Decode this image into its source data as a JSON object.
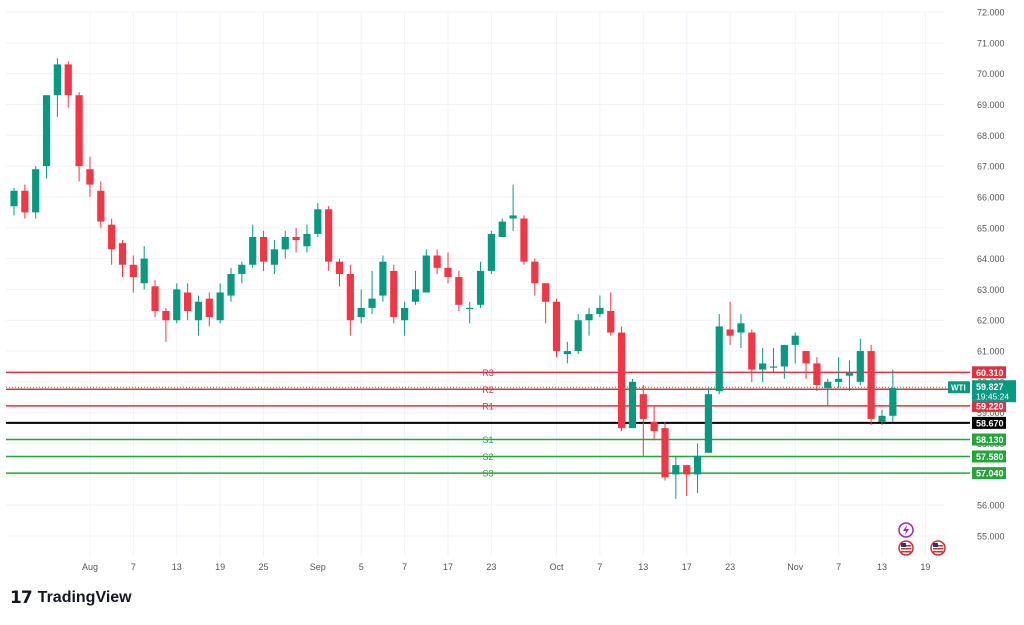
{
  "colors": {
    "up": "#089981",
    "down": "#f23645",
    "resist": "#e03040",
    "support": "#22a63a",
    "pivot": "#000000",
    "grid": "#f0f3fa",
    "axis_text": "#555555"
  },
  "chart_data": {
    "type": "candlestick",
    "symbol": "WTI",
    "last_price": "59.827",
    "countdown": "19:45:24",
    "ylim": [
      54.5,
      72.3
    ],
    "y_ticks": [
      "72.000",
      "71.000",
      "70.000",
      "69.000",
      "68.000",
      "67.000",
      "66.000",
      "65.000",
      "64.000",
      "63.000",
      "62.000",
      "61.000",
      "60.000",
      "59.000",
      "58.000",
      "57.000",
      "56.000",
      "55.000"
    ],
    "x_labels": [
      {
        "label": "Aug",
        "i": 7
      },
      {
        "label": "7",
        "i": 11
      },
      {
        "label": "13",
        "i": 15
      },
      {
        "label": "19",
        "i": 19
      },
      {
        "label": "25",
        "i": 23
      },
      {
        "label": "Sep",
        "i": 28
      },
      {
        "label": "5",
        "i": 32
      },
      {
        "label": "7",
        "i": 36
      },
      {
        "label": "17",
        "i": 40
      },
      {
        "label": "23",
        "i": 44
      },
      {
        "label": "Oct",
        "i": 50
      },
      {
        "label": "7",
        "i": 54
      },
      {
        "label": "13",
        "i": 58
      },
      {
        "label": "17",
        "i": 62
      },
      {
        "label": "23",
        "i": 66
      },
      {
        "label": "Nov",
        "i": 72
      },
      {
        "label": "7",
        "i": 76
      },
      {
        "label": "13",
        "i": 80
      },
      {
        "label": "19",
        "i": 84
      }
    ],
    "levels": [
      {
        "name": "R3",
        "value": 60.31,
        "label": "60.310",
        "kind": "resist"
      },
      {
        "name": "R2",
        "value": 59.76,
        "label": "59.760",
        "kind": "resist"
      },
      {
        "name": "R1",
        "value": 59.22,
        "label": "59.220",
        "kind": "resist"
      },
      {
        "name": "",
        "value": 58.67,
        "label": "58.670",
        "kind": "pivot"
      },
      {
        "name": "S1",
        "value": 58.13,
        "label": "58.130",
        "kind": "support"
      },
      {
        "name": "S2",
        "value": 57.58,
        "label": "57.580",
        "kind": "support"
      },
      {
        "name": "S3",
        "value": 57.04,
        "label": "57.040",
        "kind": "support"
      }
    ],
    "candles": [
      [
        65.7,
        66.2,
        66.3,
        65.4
      ],
      [
        66.2,
        65.5,
        66.4,
        65.3
      ],
      [
        65.5,
        66.9,
        67.0,
        65.3
      ],
      [
        67.0,
        69.3,
        69.3,
        66.6
      ],
      [
        69.3,
        70.3,
        70.5,
        68.6
      ],
      [
        70.3,
        69.3,
        70.4,
        68.9
      ],
      [
        69.3,
        67.0,
        69.4,
        66.5
      ],
      [
        66.9,
        66.4,
        67.3,
        66.0
      ],
      [
        66.2,
        65.2,
        66.5,
        65.0
      ],
      [
        65.1,
        64.3,
        65.3,
        63.8
      ],
      [
        64.5,
        63.8,
        64.6,
        63.4
      ],
      [
        63.8,
        63.4,
        64.1,
        62.9
      ],
      [
        63.2,
        64.0,
        64.4,
        63.0
      ],
      [
        63.1,
        62.3,
        63.3,
        62.1
      ],
      [
        62.3,
        62.0,
        62.4,
        61.3
      ],
      [
        62.0,
        63.0,
        63.2,
        61.9
      ],
      [
        62.9,
        62.3,
        63.2,
        62.0
      ],
      [
        62.0,
        62.6,
        62.8,
        61.5
      ],
      [
        62.7,
        62.1,
        62.9,
        61.8
      ],
      [
        62.0,
        62.9,
        63.2,
        61.9
      ],
      [
        62.8,
        63.5,
        63.7,
        62.6
      ],
      [
        63.5,
        63.8,
        63.9,
        63.2
      ],
      [
        63.8,
        64.7,
        65.1,
        63.7
      ],
      [
        64.7,
        63.9,
        64.9,
        63.6
      ],
      [
        63.8,
        64.3,
        64.6,
        63.5
      ],
      [
        64.3,
        64.7,
        64.9,
        64.0
      ],
      [
        64.7,
        64.6,
        65.0,
        64.2
      ],
      [
        64.4,
        64.8,
        65.1,
        64.2
      ],
      [
        64.8,
        65.6,
        65.8,
        64.7
      ],
      [
        65.6,
        63.9,
        65.7,
        63.6
      ],
      [
        63.9,
        63.5,
        64.0,
        63.1
      ],
      [
        63.5,
        62.0,
        63.8,
        61.5
      ],
      [
        62.1,
        62.4,
        63.0,
        61.9
      ],
      [
        62.4,
        62.7,
        63.6,
        62.2
      ],
      [
        62.8,
        63.9,
        64.1,
        62.6
      ],
      [
        63.6,
        62.1,
        63.8,
        61.9
      ],
      [
        62.0,
        62.4,
        62.6,
        61.5
      ],
      [
        62.6,
        63.0,
        63.6,
        62.5
      ],
      [
        62.9,
        64.1,
        64.3,
        62.9
      ],
      [
        64.1,
        63.7,
        64.3,
        63.5
      ],
      [
        63.7,
        63.4,
        64.2,
        63.2
      ],
      [
        63.4,
        62.5,
        63.6,
        62.3
      ],
      [
        62.4,
        62.4,
        62.6,
        61.9
      ],
      [
        62.5,
        63.6,
        63.9,
        62.4
      ],
      [
        63.6,
        64.8,
        64.9,
        63.5
      ],
      [
        64.7,
        65.2,
        65.3,
        64.7
      ],
      [
        65.3,
        65.4,
        66.4,
        64.9
      ],
      [
        65.3,
        63.9,
        65.4,
        63.8
      ],
      [
        63.9,
        63.2,
        64.0,
        62.8
      ],
      [
        63.2,
        62.6,
        63.2,
        61.9
      ],
      [
        62.6,
        61.0,
        62.7,
        60.8
      ],
      [
        60.9,
        61.0,
        61.3,
        60.6
      ],
      [
        61.0,
        62.0,
        62.2,
        60.9
      ],
      [
        62.0,
        62.2,
        62.4,
        61.5
      ],
      [
        62.2,
        62.4,
        62.8,
        62.1
      ],
      [
        62.3,
        61.6,
        62.9,
        61.5
      ],
      [
        61.6,
        58.5,
        61.8,
        58.4
      ],
      [
        58.5,
        60.0,
        60.1,
        58.5
      ],
      [
        59.6,
        58.8,
        59.9,
        57.6
      ],
      [
        58.7,
        58.4,
        59.2,
        58.1
      ],
      [
        58.5,
        56.9,
        58.7,
        56.8
      ],
      [
        57.0,
        57.3,
        57.6,
        56.2
      ],
      [
        57.3,
        57.0,
        57.2,
        56.3
      ],
      [
        57.0,
        57.6,
        58.0,
        56.4
      ],
      [
        57.7,
        59.6,
        59.8,
        57.7
      ],
      [
        59.7,
        61.8,
        62.2,
        59.6
      ],
      [
        61.7,
        61.5,
        62.6,
        61.2
      ],
      [
        61.6,
        61.9,
        62.2,
        61.1
      ],
      [
        61.6,
        60.4,
        61.7,
        60.0
      ],
      [
        60.4,
        60.6,
        61.1,
        60.0
      ],
      [
        60.5,
        60.5,
        61.1,
        60.3
      ],
      [
        60.5,
        61.2,
        61.2,
        60.1
      ],
      [
        61.2,
        61.5,
        61.6,
        60.6
      ],
      [
        61.0,
        60.6,
        61.0,
        60.1
      ],
      [
        60.6,
        59.9,
        60.8,
        59.7
      ],
      [
        59.8,
        60.0,
        60.1,
        59.2
      ],
      [
        60.0,
        60.1,
        60.8,
        59.8
      ],
      [
        60.2,
        60.3,
        60.7,
        59.7
      ],
      [
        60.0,
        61.0,
        61.4,
        59.9
      ],
      [
        61.0,
        58.8,
        61.2,
        58.6
      ],
      [
        58.7,
        58.9,
        59.1,
        58.6
      ],
      [
        58.9,
        59.8,
        60.4,
        58.7
      ]
    ]
  }
}
